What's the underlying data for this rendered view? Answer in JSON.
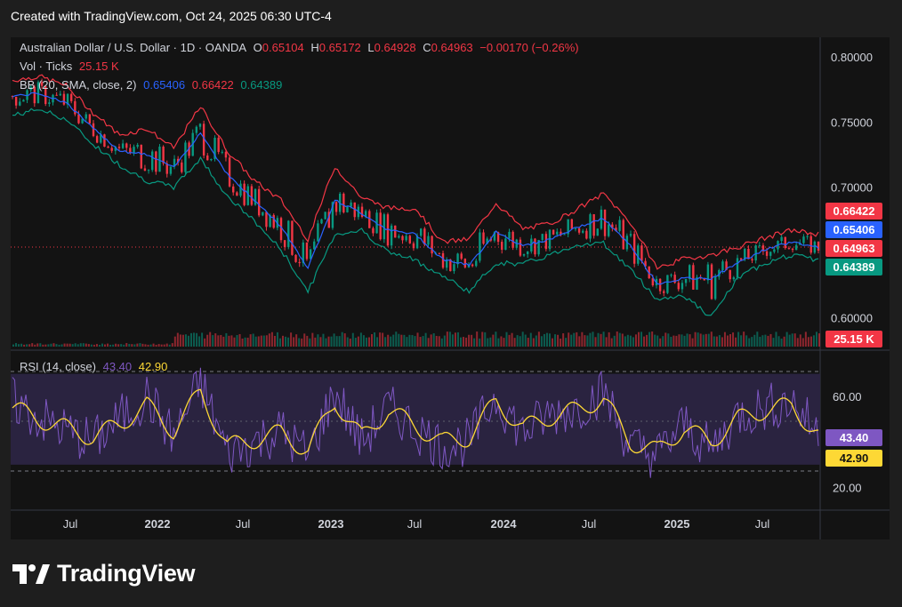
{
  "header": {
    "created": "Created with TradingView.com, Oct 24, 2025 06:30 UTC-4"
  },
  "legend": {
    "symbol": "Australian Dollar / U.S. Dollar · 1D · OANDA",
    "open_label": "O",
    "open": "0.65104",
    "high_label": "H",
    "high": "0.65172",
    "low_label": "L",
    "low": "0.64928",
    "close_label": "C",
    "close": "0.64963",
    "change": "−0.00170 (−0.26%)",
    "vol_label": "Vol · Ticks",
    "vol_value": "25.15 K",
    "bb_label": "BB (20, SMA, close, 2)",
    "bb_basis": "0.65406",
    "bb_upper": "0.66422",
    "bb_lower": "0.64389",
    "rsi_label": "RSI (14, close)",
    "rsi_value": "43.40",
    "rsi_ma": "42.90"
  },
  "price_tags": {
    "upper": "0.66422",
    "basis": "0.65406",
    "close": "0.64963",
    "lower": "0.64389",
    "volume": "25.15 K",
    "rsi": "43.40",
    "rsi_ma": "42.90"
  },
  "colors": {
    "background": "#131313",
    "upper_band": "#f23645",
    "lower_band": "#089981",
    "basis": "#2962ff",
    "up": "#089981",
    "down": "#f23645",
    "rsi": "#7e57c2",
    "rsi_ma": "#fdd835",
    "rsi_band": "#2a2340"
  },
  "footer": {
    "brand": "TradingView"
  },
  "chart_data": [
    {
      "type": "line",
      "subtype": "candlestick-with-bollinger-bands",
      "title": "Australian Dollar / U.S. Dollar · 1D · OANDA",
      "x_ticks": [
        "Jul",
        "2022",
        "Jul",
        "2023",
        "Jul",
        "2024",
        "Jul",
        "2025",
        "Jul"
      ],
      "y_ticks": [
        0.8,
        0.75,
        0.7,
        0.65,
        0.6
      ],
      "y_tick_labels": [
        "0.80000",
        "0.75000",
        "0.70000",
        "0.60000"
      ],
      "ylim": [
        0.575,
        0.815
      ],
      "x": [
        "2021-01",
        "2021-03",
        "2021-05",
        "2021-07",
        "2021-09",
        "2021-11",
        "2022-01",
        "2022-03",
        "2022-05",
        "2022-07",
        "2022-09",
        "2022-11",
        "2023-01",
        "2023-03",
        "2023-05",
        "2023-07",
        "2023-09",
        "2023-11",
        "2024-01",
        "2024-03",
        "2024-05",
        "2024-07",
        "2024-09",
        "2024-11",
        "2025-01",
        "2025-03",
        "2025-04",
        "2025-05",
        "2025-07",
        "2025-09",
        "2025-10"
      ],
      "series": [
        {
          "name": "Basis",
          "values": [
            0.77,
            0.772,
            0.765,
            0.745,
            0.728,
            0.725,
            0.715,
            0.742,
            0.71,
            0.69,
            0.67,
            0.638,
            0.69,
            0.68,
            0.667,
            0.664,
            0.645,
            0.64,
            0.666,
            0.655,
            0.66,
            0.669,
            0.676,
            0.655,
            0.626,
            0.63,
            0.63,
            0.642,
            0.652,
            0.658,
            0.654
          ]
        },
        {
          "name": "Upper",
          "values": [
            0.782,
            0.785,
            0.778,
            0.757,
            0.74,
            0.745,
            0.73,
            0.762,
            0.728,
            0.705,
            0.69,
            0.66,
            0.716,
            0.692,
            0.684,
            0.684,
            0.658,
            0.66,
            0.688,
            0.668,
            0.672,
            0.683,
            0.695,
            0.673,
            0.638,
            0.645,
            0.648,
            0.654,
            0.661,
            0.667,
            0.664
          ]
        },
        {
          "name": "Lower",
          "values": [
            0.755,
            0.76,
            0.752,
            0.733,
            0.717,
            0.705,
            0.7,
            0.722,
            0.693,
            0.674,
            0.652,
            0.62,
            0.664,
            0.667,
            0.65,
            0.644,
            0.632,
            0.62,
            0.642,
            0.641,
            0.648,
            0.656,
            0.657,
            0.637,
            0.614,
            0.617,
            0.6,
            0.63,
            0.642,
            0.648,
            0.644
          ]
        }
      ]
    },
    {
      "type": "bar",
      "title": "Vol · Ticks",
      "note": "daily tick volume, last value 25.15 K",
      "values_summary": {
        "last": 25.15,
        "unit": "K"
      }
    },
    {
      "type": "line",
      "title": "RSI (14, close)",
      "y_ticks": [
        60,
        20
      ],
      "y_tick_labels": [
        "60.00",
        "20.00"
      ],
      "band": [
        30,
        70
      ],
      "ylim": [
        10,
        80
      ],
      "x": [
        "2021-01",
        "2021-03",
        "2021-05",
        "2021-07",
        "2021-09",
        "2021-11",
        "2022-01",
        "2022-03",
        "2022-05",
        "2022-07",
        "2022-09",
        "2022-11",
        "2023-01",
        "2023-03",
        "2023-05",
        "2023-07",
        "2023-09",
        "2023-11",
        "2024-01",
        "2024-03",
        "2024-05",
        "2024-07",
        "2024-09",
        "2024-11",
        "2025-01",
        "2025-03",
        "2025-04",
        "2025-05",
        "2025-07",
        "2025-09",
        "2025-10"
      ],
      "series": [
        {
          "name": "RSI",
          "values": [
            58,
            50,
            45,
            40,
            50,
            60,
            42,
            66,
            35,
            40,
            45,
            34,
            62,
            40,
            55,
            46,
            38,
            40,
            60,
            44,
            52,
            55,
            62,
            38,
            34,
            48,
            36,
            52,
            55,
            58,
            43.4
          ]
        },
        {
          "name": "RSI MA",
          "values": [
            55,
            50,
            46,
            42,
            48,
            56,
            45,
            62,
            38,
            41,
            44,
            36,
            58,
            42,
            54,
            47,
            40,
            42,
            58,
            46,
            51,
            54,
            59,
            40,
            36,
            46,
            40,
            50,
            54,
            56,
            42.9
          ]
        }
      ]
    }
  ]
}
